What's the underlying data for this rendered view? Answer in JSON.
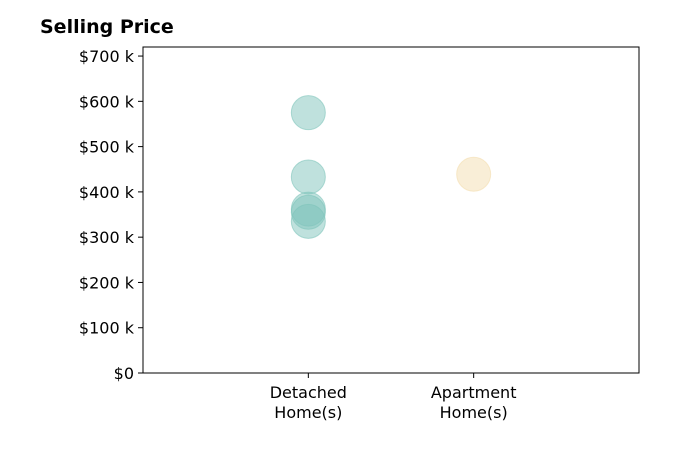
{
  "chart_data": {
    "type": "scatter",
    "title": "Selling Price",
    "xlabel": "",
    "ylabel": "",
    "categories": [
      [
        "Detached",
        "Home(s)"
      ],
      [
        "Apartment",
        "Home(s)"
      ]
    ],
    "series": [
      {
        "category_index": 0,
        "color": "#7fc4bb",
        "values": [
          575000,
          433000,
          362000,
          355000,
          335000
        ]
      },
      {
        "category_index": 1,
        "color": "#f3deaf",
        "values": [
          439000
        ]
      }
    ],
    "ylim": [
      0,
      720000
    ],
    "yticks": [
      0,
      100000,
      200000,
      300000,
      400000,
      500000,
      600000,
      700000
    ],
    "ytick_labels": [
      "$0",
      "$100 k",
      "$200 k",
      "$300 k",
      "$400 k",
      "$500 k",
      "$600 k",
      "$700 k"
    ],
    "grid": false,
    "legend": "none"
  }
}
